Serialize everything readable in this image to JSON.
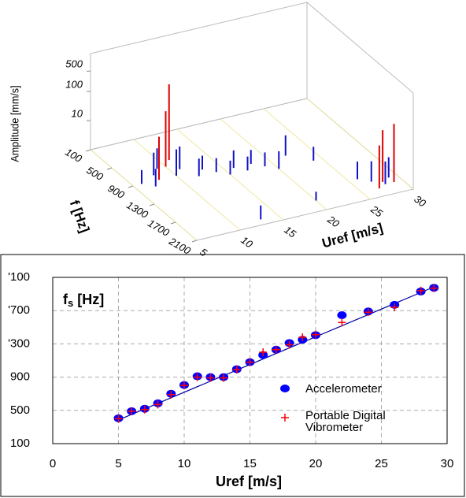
{
  "chart_data": [
    {
      "type": "waterfall3d",
      "x_label": "Uref [m/s]",
      "y_label": "f [Hz]",
      "z_label": "Amplitude [mm/s]",
      "xlim": [
        5,
        30
      ],
      "xticks": [
        5,
        10,
        15,
        20,
        25,
        30
      ],
      "ylim": [
        100,
        2100
      ],
      "yticks": [
        100,
        500,
        900,
        1300,
        1700,
        2100
      ],
      "zlim": [
        1,
        2000
      ],
      "zticks": [
        10,
        100,
        500
      ],
      "zscale": "log",
      "series": [
        {
          "color": "#1010c8",
          "x": [
            6,
            7,
            8,
            9,
            10,
            11,
            12,
            13,
            14,
            15,
            16,
            17,
            18,
            19,
            20,
            22,
            24,
            20,
            26,
            27,
            28,
            29,
            13
          ],
          "f": [
            900,
            1000,
            800,
            700,
            900,
            800,
            1000,
            900,
            1000,
            1100,
            1000,
            1100,
            1000,
            1100,
            1200,
            1000,
            1200,
            1900,
            1700,
            1800,
            1900,
            1800,
            2000
          ],
          "values": [
            3,
            4,
            6,
            5,
            8,
            6,
            4,
            3,
            3,
            3,
            4,
            3,
            3,
            3,
            4,
            5,
            3,
            2,
            4,
            5,
            6,
            5,
            3
          ]
        },
        {
          "color": "#e00000",
          "x": [
            8,
            10,
            11,
            28,
            29,
            27
          ],
          "f": [
            900,
            700,
            600,
            1850,
            1900,
            1950
          ],
          "values": [
            30,
            80,
            400,
            60,
            100,
            30
          ]
        }
      ]
    },
    {
      "type": "scatter",
      "annotation": {
        "main": "f",
        "sub": "s",
        "unit": "[Hz]"
      },
      "x_label": "Uref [m/s]",
      "xlim": [
        0,
        30
      ],
      "xticks": [
        0,
        5,
        10,
        15,
        20,
        25,
        30
      ],
      "ylim": [
        100,
        2100
      ],
      "yticks": [
        100,
        500,
        900,
        {
          "value": 1300,
          "label": "'300"
        },
        {
          "value": 1700,
          "label": "'700"
        },
        {
          "value": 2100,
          "label": "'100"
        }
      ],
      "grid": true,
      "series": [
        {
          "name": "Accelerometer",
          "color": "#0000ff",
          "marker": "circle",
          "x": [
            5,
            6,
            7,
            8,
            9,
            10,
            11,
            12,
            13,
            14,
            15,
            16,
            17,
            18,
            19,
            20,
            22,
            24,
            26,
            28,
            29
          ],
          "values": [
            405,
            490,
            520,
            585,
            700,
            805,
            910,
            900,
            900,
            995,
            1080,
            1165,
            1230,
            1310,
            1350,
            1405,
            1645,
            1690,
            1770,
            1930,
            1975
          ]
        },
        {
          "name": "Portable Digital Vibrometer",
          "color": "#ff0000",
          "marker": "plus",
          "x": [
            5,
            6,
            7,
            8,
            9,
            10,
            11,
            12,
            13,
            14,
            15,
            16,
            17,
            18,
            19,
            20,
            22,
            24,
            26,
            28,
            29
          ],
          "values": [
            400,
            490,
            510,
            570,
            690,
            800,
            900,
            890,
            890,
            990,
            1080,
            1200,
            1230,
            1290,
            1380,
            1410,
            1557,
            1680,
            1740,
            1940,
            1970
          ]
        }
      ],
      "fit": {
        "color": "#0000a0",
        "x": [
          5,
          29
        ],
        "values": [
          385,
          1985
        ]
      }
    }
  ]
}
